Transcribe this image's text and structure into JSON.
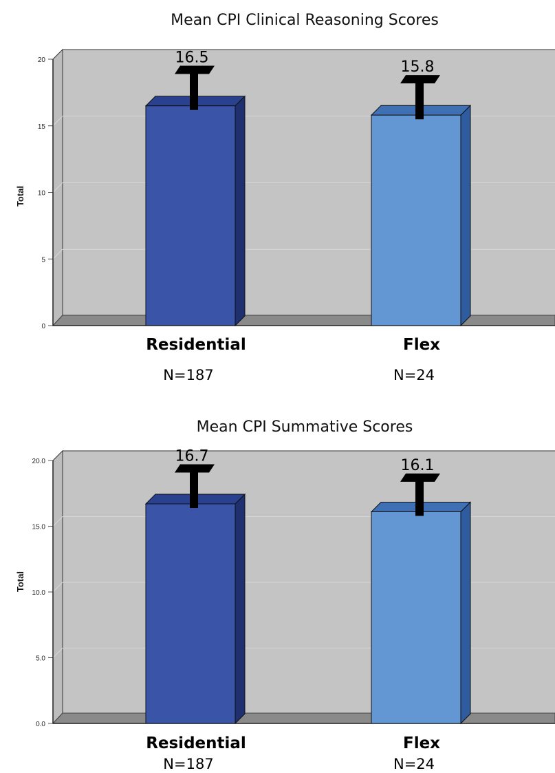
{
  "chart_data": [
    {
      "type": "bar",
      "title": "Mean CPI Clinical Reasoning Scores",
      "ylabel": "Total",
      "xlabel": "",
      "ylim": [
        0,
        20
      ],
      "yticks": [
        "0",
        "5",
        "10",
        "15",
        "20"
      ],
      "categories": [
        "Residential",
        "Flex"
      ],
      "sample_sizes": [
        "N=187",
        "N=24"
      ],
      "values": [
        16.5,
        15.8
      ],
      "value_labels": [
        "16.5",
        "15.8"
      ],
      "error_upper": [
        19.3,
        18.6
      ],
      "grid": true,
      "legend": "none",
      "colors": [
        "#3A55A8",
        "#6397D3"
      ]
    },
    {
      "type": "bar",
      "title": "Mean CPI Summative Scores",
      "ylabel": "Total",
      "xlabel": "",
      "ylim": [
        0,
        20
      ],
      "yticks": [
        "0.0",
        "5.0",
        "10.0",
        "15.0",
        "20.0"
      ],
      "categories": [
        "Residential",
        "Flex"
      ],
      "sample_sizes": [
        "N=187",
        "N=24"
      ],
      "values": [
        16.7,
        16.1
      ],
      "value_labels": [
        "16.7",
        "16.1"
      ],
      "error_upper": [
        19.5,
        18.8
      ],
      "grid": true,
      "legend": "none",
      "colors": [
        "#3A55A8",
        "#6397D3"
      ]
    }
  ],
  "style": {
    "plot_background": "#C4C4C4",
    "floor_color": "#8A8A8A",
    "gridline_color": "#D6D6D6",
    "error_bar_color": "#000000"
  }
}
